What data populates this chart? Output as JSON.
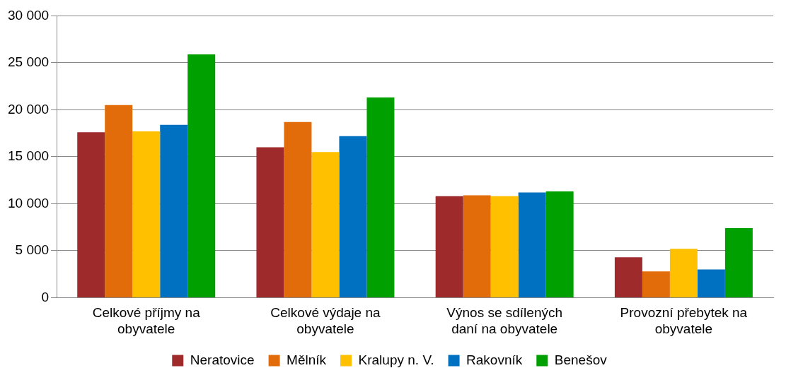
{
  "chart_data": {
    "type": "bar",
    "categories": [
      "Celkové příjmy na obyvatele",
      "Celkové výdaje na obyvatele",
      "Výnos se sdílených daní na obyvatele",
      "Provozní přebytek na obyvatele"
    ],
    "series": [
      {
        "name": "Neratovice",
        "color": "#9e2a2b",
        "values": [
          17600,
          16000,
          10800,
          4300
        ]
      },
      {
        "name": "Mělník",
        "color": "#e36c0a",
        "values": [
          20500,
          18700,
          10900,
          2800
        ]
      },
      {
        "name": "Kralupy n. V.",
        "color": "#ffc000",
        "values": [
          17700,
          15500,
          10800,
          5200
        ]
      },
      {
        "name": "Rakovník",
        "color": "#0070c0",
        "values": [
          18400,
          17200,
          11200,
          3000
        ]
      },
      {
        "name": "Benešov",
        "color": "#00a000",
        "values": [
          25900,
          21300,
          11300,
          7400
        ]
      }
    ],
    "ylim": [
      0,
      30000
    ],
    "yticks": [
      0,
      {
        "value": 5000,
        "label": "5 000"
      },
      {
        "value": 10000,
        "label": "10 000"
      },
      {
        "value": 15000,
        "label": "15 000"
      },
      {
        "value": 20000,
        "label": "20 000"
      },
      {
        "value": 25000,
        "label": "25 000"
      },
      {
        "value": 30000,
        "label": "30 000"
      }
    ],
    "grid": "y",
    "legend": "bottom"
  }
}
